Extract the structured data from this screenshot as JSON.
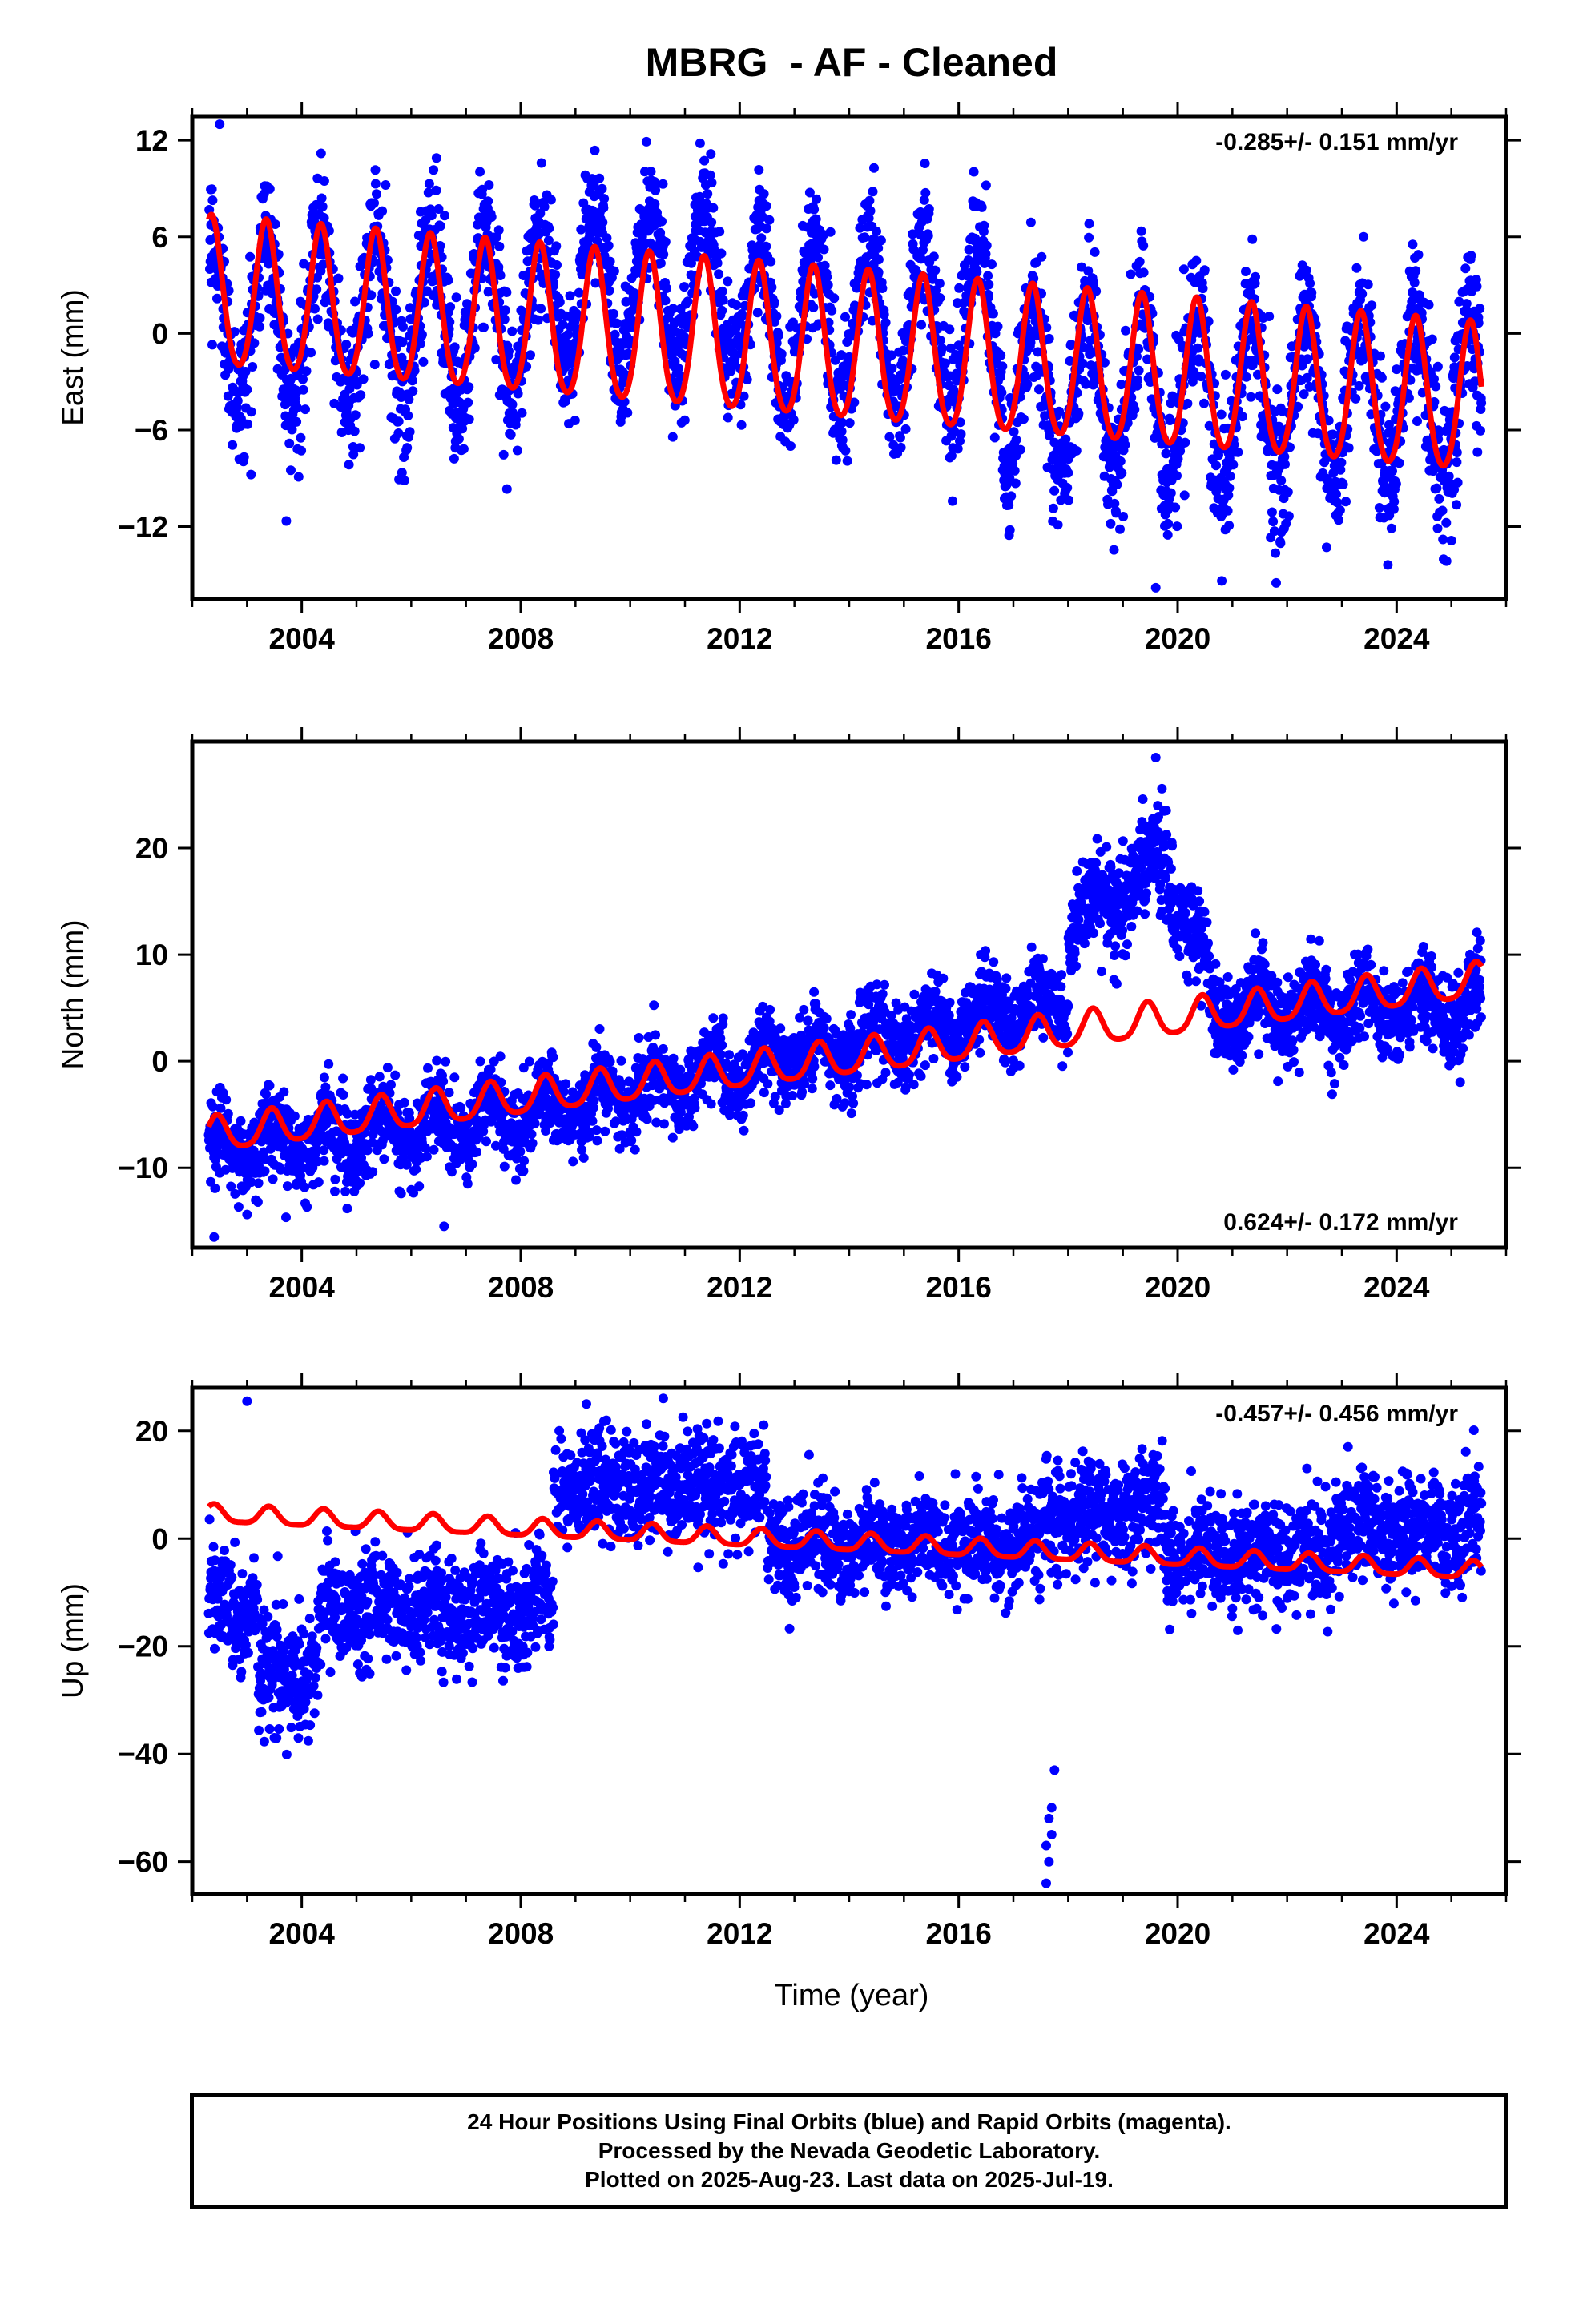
{
  "title": "MBRG  - AF - Cleaned",
  "xlabel": "Time (year)",
  "footer": {
    "line1": "24 Hour Positions Using Final Orbits (blue) and Rapid Orbits (magenta).",
    "line2": "Processed by the Nevada Geodetic Laboratory.",
    "line3": "Plotted on 2025-Aug-23. Last data on 2025-Jul-19."
  },
  "colors": {
    "points": "#0000ff",
    "model": "#ff0000",
    "frame": "#000000"
  },
  "chart_data": [
    {
      "type": "scatter",
      "component": "east",
      "ylabel": "East (mm)",
      "rate_text": "-0.285+/- 0.151 mm/yr",
      "rate_position": "top-right",
      "xlim": [
        2002.0,
        2026.0
      ],
      "ylim": [
        -16.5,
        13.5
      ],
      "xticks": [
        2004,
        2008,
        2012,
        2016,
        2020,
        2024
      ],
      "yticks": [
        12,
        6,
        0,
        -6,
        -12
      ],
      "data_start": 2002.3,
      "data_end": 2025.55,
      "model": {
        "offset_at_start": 2.3,
        "rate_mm_per_yr": -0.285,
        "annual_amplitude": 4.6,
        "annual_phase_peak": 0.35,
        "semiannual_amplitude": 0.5
      },
      "observations": [
        {
          "start": 2002.3,
          "end": 2008.5,
          "offset": 1.0,
          "scatter": 2.2
        },
        {
          "start": 2008.5,
          "end": 2012.0,
          "offset": 3.0,
          "scatter": 2.0
        },
        {
          "start": 2012.0,
          "end": 2016.8,
          "offset": 0.5,
          "scatter": 2.0
        },
        {
          "start": 2016.8,
          "end": 2019.7,
          "offset": -3.5,
          "scatter": 2.2
        },
        {
          "start": 2019.7,
          "end": 2025.55,
          "offset": -4.0,
          "scatter": 2.3
        }
      ],
      "outliers": [
        {
          "x": 2019.6,
          "y": -15.8
        },
        {
          "x": 2021.8,
          "y": -15.5
        },
        {
          "x": 2003.8,
          "y": -8.5
        },
        {
          "x": 2002.5,
          "y": 13.0
        }
      ]
    },
    {
      "type": "scatter",
      "component": "north",
      "ylabel": "North (mm)",
      "rate_text": "0.624+/- 0.172 mm/yr",
      "rate_position": "bottom-right",
      "xlim": [
        2002.0,
        2026.0
      ],
      "ylim": [
        -17.5,
        30.0
      ],
      "xticks": [
        2004,
        2008,
        2012,
        2016,
        2020,
        2024
      ],
      "yticks": [
        20,
        10,
        0,
        -10
      ],
      "data_start": 2002.3,
      "data_end": 2025.55,
      "model": {
        "offset_at_start": -7.0,
        "rate_mm_per_yr": 0.624,
        "annual_amplitude": 1.6,
        "annual_phase_peak": 0.45,
        "semiannual_amplitude": 0.3
      },
      "observations": [
        {
          "start": 2002.3,
          "end": 2008.5,
          "offset": -8.5,
          "slope": 0.6,
          "scatter": 2.0
        },
        {
          "start": 2008.5,
          "end": 2018.0,
          "offset": -4.5,
          "slope": 1.1,
          "scatter": 1.8
        },
        {
          "start": 2018.0,
          "end": 2019.8,
          "offset": 12.0,
          "slope": 4.5,
          "scatter": 2.5
        },
        {
          "start": 2019.8,
          "end": 2020.6,
          "offset": 18.0,
          "slope": -14.0,
          "scatter": 2.0
        },
        {
          "start": 2020.6,
          "end": 2025.55,
          "offset": 5.0,
          "slope": 0.0,
          "scatter": 2.0
        }
      ],
      "outliers": [
        {
          "x": 2019.6,
          "y": 28.5
        },
        {
          "x": 2002.4,
          "y": -16.5
        },
        {
          "x": 2006.6,
          "y": -15.5
        }
      ]
    },
    {
      "type": "scatter",
      "component": "up",
      "ylabel": "Up (mm)",
      "rate_text": "-0.457+/- 0.456 mm/yr",
      "rate_position": "top-right",
      "xlim": [
        2002.0,
        2026.0
      ],
      "ylim": [
        -66.0,
        28.0
      ],
      "xticks": [
        2004,
        2008,
        2012,
        2016,
        2020,
        2024
      ],
      "yticks": [
        20,
        0,
        -20,
        -40,
        -60
      ],
      "data_start": 2002.3,
      "data_end": 2025.55,
      "model": {
        "offset_at_start": 4.5,
        "rate_mm_per_yr": -0.457,
        "annual_amplitude": 1.6,
        "annual_phase_peak": 0.4,
        "semiannual_amplitude": 0.4
      },
      "observations": [
        {
          "start": 2002.3,
          "end": 2003.2,
          "offset": -12.0,
          "scatter": 5.0
        },
        {
          "start": 2003.2,
          "end": 2004.3,
          "offset": -25.0,
          "scatter": 5.5
        },
        {
          "start": 2004.3,
          "end": 2008.6,
          "offset": -13.0,
          "scatter": 5.0
        },
        {
          "start": 2008.6,
          "end": 2012.5,
          "offset": 10.0,
          "scatter": 5.0
        },
        {
          "start": 2012.5,
          "end": 2017.5,
          "offset": -1.0,
          "scatter": 4.5
        },
        {
          "start": 2017.5,
          "end": 2019.8,
          "offset": 5.0,
          "scatter": 5.0
        },
        {
          "start": 2019.8,
          "end": 2022.8,
          "offset": -3.0,
          "scatter": 4.5
        },
        {
          "start": 2022.8,
          "end": 2025.55,
          "offset": 2.0,
          "scatter": 5.0
        }
      ],
      "outliers": [
        {
          "x": 2003.0,
          "y": 25.5
        },
        {
          "x": 2009.2,
          "y": 25.0
        },
        {
          "x": 2017.6,
          "y": -64.0
        },
        {
          "x": 2017.65,
          "y": -60.0
        },
        {
          "x": 2017.6,
          "y": -57.0
        },
        {
          "x": 2017.7,
          "y": -55.0
        },
        {
          "x": 2017.65,
          "y": -52.0
        },
        {
          "x": 2017.7,
          "y": -50.0
        },
        {
          "x": 2017.75,
          "y": -43.0
        },
        {
          "x": 2003.5,
          "y": -37.0
        }
      ]
    }
  ]
}
